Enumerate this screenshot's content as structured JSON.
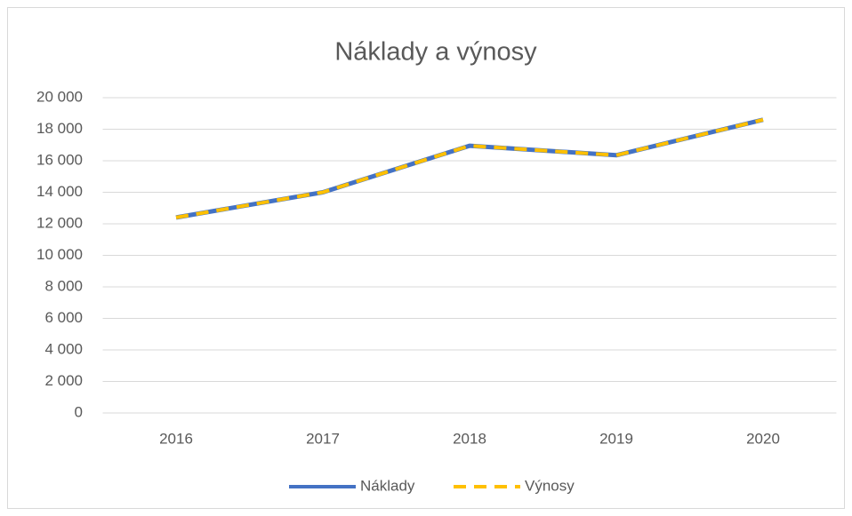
{
  "chart_data": {
    "type": "line",
    "title": "Náklady a výnosy",
    "categories": [
      "2016",
      "2017",
      "2018",
      "2019",
      "2020"
    ],
    "series": [
      {
        "name": "Náklady",
        "color": "#4472c4",
        "dash": false,
        "values": [
          12400,
          14000,
          16950,
          16350,
          18600
        ]
      },
      {
        "name": "Výnosy",
        "color": "#ffc000",
        "dash": true,
        "values": [
          12400,
          14000,
          16950,
          16350,
          18600
        ]
      }
    ],
    "ylim": [
      0,
      20000
    ],
    "yticks": [
      0,
      {
        "value": 2000,
        "label": "2 000"
      },
      {
        "value": 4000,
        "label": "4 000"
      },
      {
        "value": 6000,
        "label": "6 000"
      },
      {
        "value": 8000,
        "label": "8 000"
      },
      {
        "value": 10000,
        "label": "10 000"
      },
      {
        "value": 12000,
        "label": "12 000"
      },
      {
        "value": 14000,
        "label": "14 000"
      },
      {
        "value": 16000,
        "label": "16 000"
      },
      {
        "value": 18000,
        "label": "18 000"
      },
      {
        "value": 20000,
        "label": "20 000"
      }
    ],
    "grid": true,
    "legend": "bottom"
  }
}
